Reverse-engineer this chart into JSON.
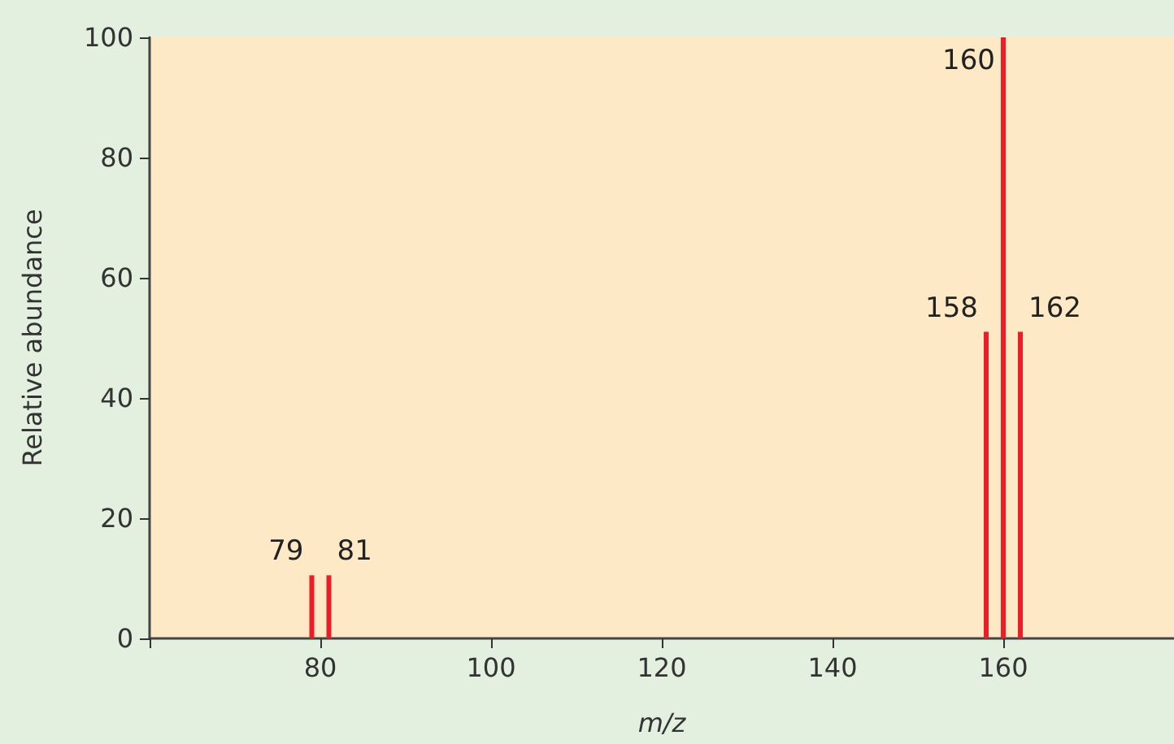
{
  "chart_data": {
    "type": "bar",
    "xlabel": "m/z",
    "ylabel": "Relative abundance",
    "x": [
      79,
      81,
      158,
      160,
      162
    ],
    "values": [
      10.5,
      10.5,
      51,
      100,
      51
    ],
    "color": "#ee1c25",
    "xlim": [
      60,
      180
    ],
    "xticks": [
      {
        "value": 60,
        "label": null
      },
      80,
      100,
      120,
      140,
      160
    ],
    "ylim": [
      0,
      100
    ],
    "yticks": [
      0,
      20,
      40,
      60,
      80,
      100
    ],
    "grid": false,
    "annotations": [
      {
        "text": "79",
        "x": 79,
        "y": 10.5
      },
      {
        "text": "81",
        "x": 81,
        "y": 10.5
      },
      {
        "text": "158",
        "x": 158,
        "y": 51
      },
      {
        "text": "160",
        "x": 160,
        "y": 100
      },
      {
        "text": "162",
        "x": 162,
        "y": 51
      }
    ]
  }
}
